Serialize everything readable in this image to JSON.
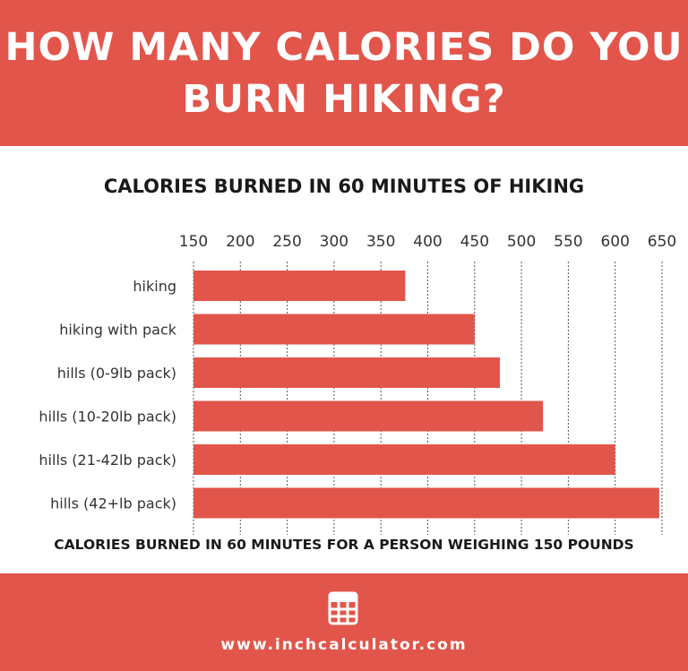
{
  "header": {
    "title": "HOW MANY CALORIES DO YOU BURN HIKING?"
  },
  "footer": {
    "url": "www.inchcalculator.com",
    "icon": "calculator-icon"
  },
  "colors": {
    "accent": "#E2554A"
  },
  "chart_data": {
    "type": "bar",
    "orientation": "horizontal",
    "title": "CALORIES BURNED IN 60 MINUTES OF HIKING",
    "note": "CALORIES BURNED IN 60 MINUTES FOR A PERSON WEIGHING 150 POUNDS",
    "categories": [
      "hiking",
      "hiking with pack",
      "hills (0-9lb pack)",
      "hills (10-20lb pack)",
      "hills (21-42lb pack)",
      "hills (42+lb pack)"
    ],
    "values": [
      376,
      450,
      477,
      523,
      600,
      647
    ],
    "xlim": [
      150,
      650
    ],
    "xticks": [
      "150",
      "200",
      "250",
      "300",
      "350",
      "400",
      "450",
      "500",
      "550",
      "600",
      "650"
    ],
    "grid": true
  }
}
